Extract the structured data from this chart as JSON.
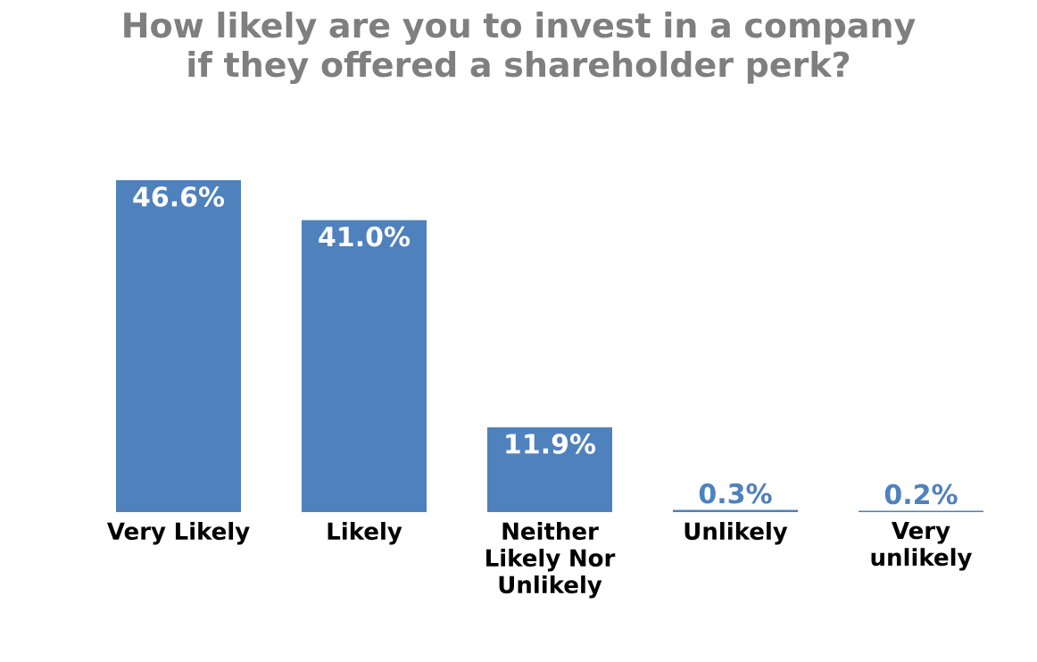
{
  "chart_data": {
    "type": "bar",
    "title": "How likely are you to invest in a company if they offered a shareholder perk?",
    "categories": [
      "Very Likely",
      "Likely",
      "Neither Likely Nor Unlikely",
      "Unlikely",
      "Very unlikely"
    ],
    "values": [
      46.6,
      41.0,
      11.9,
      0.3,
      0.2
    ],
    "value_labels": [
      "46.6%",
      "41.0%",
      "11.9%",
      "0.3%",
      "0.2%"
    ],
    "color": "#4f81bd"
  }
}
